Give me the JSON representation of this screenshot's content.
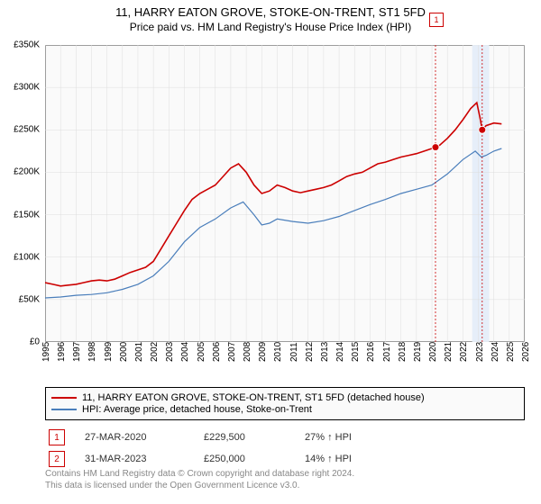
{
  "title": "11, HARRY EATON GROVE, STOKE-ON-TRENT, ST1 5FD",
  "subtitle": "Price paid vs. HM Land Registry's House Price Index (HPI)",
  "chart": {
    "type": "line",
    "background_color": "#fafafa",
    "grid_color": "#dddddd",
    "border_color": "#888888",
    "x_start_year": 1995,
    "x_end_year": 2026,
    "xtick_years": [
      1995,
      1996,
      1997,
      1998,
      1999,
      2000,
      2001,
      2002,
      2003,
      2004,
      2005,
      2006,
      2007,
      2008,
      2009,
      2010,
      2011,
      2012,
      2013,
      2014,
      2015,
      2016,
      2017,
      2018,
      2019,
      2020,
      2021,
      2022,
      2023,
      2024,
      2025,
      2026
    ],
    "ylim": [
      0,
      350000
    ],
    "ytick_step": 50000,
    "ytick_labels": [
      "£0",
      "£50K",
      "£100K",
      "£150K",
      "£200K",
      "£250K",
      "£300K",
      "£350K"
    ],
    "series": [
      {
        "name": "property",
        "label": "11, HARRY EATON GROVE, STOKE-ON-TRENT, ST1 5FD (detached house)",
        "color": "#cc0000",
        "width": 1.6,
        "points": [
          [
            1995.0,
            70000
          ],
          [
            1995.5,
            68000
          ],
          [
            1996.0,
            66000
          ],
          [
            1996.5,
            67000
          ],
          [
            1997.0,
            68000
          ],
          [
            1997.5,
            70000
          ],
          [
            1998.0,
            72000
          ],
          [
            1998.5,
            73000
          ],
          [
            1999.0,
            72000
          ],
          [
            1999.5,
            74000
          ],
          [
            2000.0,
            78000
          ],
          [
            2000.5,
            82000
          ],
          [
            2001.0,
            85000
          ],
          [
            2001.5,
            88000
          ],
          [
            2002.0,
            95000
          ],
          [
            2002.5,
            110000
          ],
          [
            2003.0,
            125000
          ],
          [
            2003.5,
            140000
          ],
          [
            2004.0,
            155000
          ],
          [
            2004.5,
            168000
          ],
          [
            2005.0,
            175000
          ],
          [
            2005.5,
            180000
          ],
          [
            2006.0,
            185000
          ],
          [
            2006.5,
            195000
          ],
          [
            2007.0,
            205000
          ],
          [
            2007.5,
            210000
          ],
          [
            2008.0,
            200000
          ],
          [
            2008.5,
            185000
          ],
          [
            2009.0,
            175000
          ],
          [
            2009.5,
            178000
          ],
          [
            2010.0,
            185000
          ],
          [
            2010.5,
            182000
          ],
          [
            2011.0,
            178000
          ],
          [
            2011.5,
            176000
          ],
          [
            2012.0,
            178000
          ],
          [
            2012.5,
            180000
          ],
          [
            2013.0,
            182000
          ],
          [
            2013.5,
            185000
          ],
          [
            2014.0,
            190000
          ],
          [
            2014.5,
            195000
          ],
          [
            2015.0,
            198000
          ],
          [
            2015.5,
            200000
          ],
          [
            2016.0,
            205000
          ],
          [
            2016.5,
            210000
          ],
          [
            2017.0,
            212000
          ],
          [
            2017.5,
            215000
          ],
          [
            2018.0,
            218000
          ],
          [
            2018.5,
            220000
          ],
          [
            2019.0,
            222000
          ],
          [
            2019.5,
            225000
          ],
          [
            2020.0,
            228000
          ],
          [
            2020.23,
            229500
          ],
          [
            2020.5,
            232000
          ],
          [
            2021.0,
            240000
          ],
          [
            2021.5,
            250000
          ],
          [
            2022.0,
            262000
          ],
          [
            2022.5,
            275000
          ],
          [
            2022.9,
            282000
          ],
          [
            2023.1,
            265000
          ],
          [
            2023.25,
            250000
          ],
          [
            2023.5,
            255000
          ],
          [
            2024.0,
            258000
          ],
          [
            2024.5,
            257000
          ]
        ]
      },
      {
        "name": "hpi",
        "label": "HPI: Average price, detached house, Stoke-on-Trent",
        "color": "#4a7ebb",
        "width": 1.2,
        "points": [
          [
            1995.0,
            52000
          ],
          [
            1996.0,
            53000
          ],
          [
            1997.0,
            55000
          ],
          [
            1998.0,
            56000
          ],
          [
            1999.0,
            58000
          ],
          [
            2000.0,
            62000
          ],
          [
            2001.0,
            68000
          ],
          [
            2002.0,
            78000
          ],
          [
            2003.0,
            95000
          ],
          [
            2004.0,
            118000
          ],
          [
            2005.0,
            135000
          ],
          [
            2006.0,
            145000
          ],
          [
            2007.0,
            158000
          ],
          [
            2007.8,
            165000
          ],
          [
            2008.5,
            150000
          ],
          [
            2009.0,
            138000
          ],
          [
            2009.5,
            140000
          ],
          [
            2010.0,
            145000
          ],
          [
            2011.0,
            142000
          ],
          [
            2012.0,
            140000
          ],
          [
            2013.0,
            143000
          ],
          [
            2014.0,
            148000
          ],
          [
            2015.0,
            155000
          ],
          [
            2016.0,
            162000
          ],
          [
            2017.0,
            168000
          ],
          [
            2018.0,
            175000
          ],
          [
            2019.0,
            180000
          ],
          [
            2020.0,
            185000
          ],
          [
            2021.0,
            198000
          ],
          [
            2022.0,
            215000
          ],
          [
            2022.8,
            225000
          ],
          [
            2023.2,
            218000
          ],
          [
            2023.5,
            220000
          ],
          [
            2024.0,
            225000
          ],
          [
            2024.5,
            228000
          ]
        ]
      }
    ],
    "markers": [
      {
        "id": "1",
        "year": 2020.23,
        "value": 229500,
        "color": "#cc0000",
        "label_y_offset": -150
      },
      {
        "id": "2",
        "year": 2023.25,
        "value": 250000,
        "color": "#cc0000",
        "label_y_offset": -180
      }
    ],
    "highlight_band": {
      "from_year": 2022.6,
      "to_year": 2023.7,
      "color": "#e6eef9"
    }
  },
  "legend": {
    "rows": [
      {
        "color": "#cc0000",
        "text": "11, HARRY EATON GROVE, STOKE-ON-TRENT, ST1 5FD (detached house)"
      },
      {
        "color": "#4a7ebb",
        "text": "HPI: Average price, detached house, Stoke-on-Trent"
      }
    ]
  },
  "sales": [
    {
      "id": "1",
      "date": "27-MAR-2020",
      "price": "£229,500",
      "diff": "27% ↑ HPI",
      "color": "#cc0000"
    },
    {
      "id": "2",
      "date": "31-MAR-2023",
      "price": "£250,000",
      "diff": "14% ↑ HPI",
      "color": "#cc0000"
    }
  ],
  "footer": {
    "line1": "Contains HM Land Registry data © Crown copyright and database right 2024.",
    "line2": "This data is licensed under the Open Government Licence v3.0."
  }
}
